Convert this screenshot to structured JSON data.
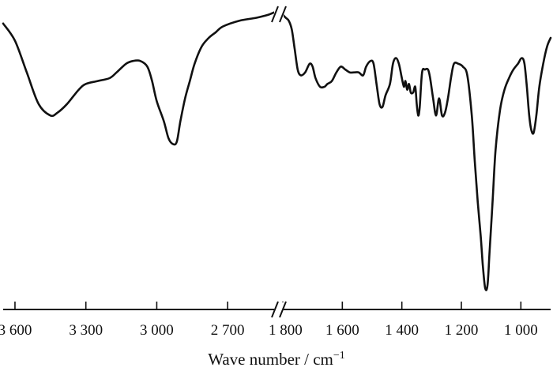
{
  "chart_data": {
    "type": "line",
    "title": "",
    "xlabel": "Wave number / cm",
    "xlabel_superscript": "−1",
    "ylabel": "",
    "x_reversed": true,
    "axis_break": "1 800",
    "grid": false,
    "legend": "none",
    "line_color": "#111111",
    "segments": [
      {
        "xlim": [
          3650,
          2500
        ],
        "ticks": [
          {
            "value": 3600,
            "label": "3 600"
          },
          {
            "value": 3300,
            "label": "3 300"
          },
          {
            "value": 3000,
            "label": "3 000"
          },
          {
            "value": 2700,
            "label": "2 700"
          }
        ],
        "points": [
          [
            3650,
            0.94
          ],
          [
            3600,
            0.88
          ],
          [
            3550,
            0.77
          ],
          [
            3500,
            0.66
          ],
          [
            3450,
            0.62
          ],
          [
            3420,
            0.63
          ],
          [
            3380,
            0.66
          ],
          [
            3330,
            0.71
          ],
          [
            3300,
            0.73
          ],
          [
            3250,
            0.74
          ],
          [
            3200,
            0.75
          ],
          [
            3170,
            0.77
          ],
          [
            3130,
            0.8
          ],
          [
            3100,
            0.81
          ],
          [
            3070,
            0.81
          ],
          [
            3040,
            0.79
          ],
          [
            3020,
            0.74
          ],
          [
            3000,
            0.67
          ],
          [
            2970,
            0.6
          ],
          [
            2950,
            0.54
          ],
          [
            2930,
            0.52
          ],
          [
            2915,
            0.53
          ],
          [
            2900,
            0.6
          ],
          [
            2880,
            0.68
          ],
          [
            2860,
            0.74
          ],
          [
            2840,
            0.8
          ],
          [
            2810,
            0.86
          ],
          [
            2780,
            0.89
          ],
          [
            2750,
            0.91
          ],
          [
            2720,
            0.93
          ],
          [
            2650,
            0.95
          ],
          [
            2580,
            0.96
          ],
          [
            2530,
            0.97
          ],
          [
            2500,
            0.98
          ]
        ]
      },
      {
        "xlim": [
          1800,
          900
        ],
        "ticks": [
          {
            "value": 1800,
            "label": "1 800"
          },
          {
            "value": 1600,
            "label": "1 600"
          },
          {
            "value": 1400,
            "label": "1 400"
          },
          {
            "value": 1200,
            "label": "1 200"
          },
          {
            "value": 1000,
            "label": "1 000"
          }
        ],
        "points": [
          [
            1800,
            0.97
          ],
          [
            1790,
            0.96
          ],
          [
            1780,
            0.95
          ],
          [
            1770,
            0.92
          ],
          [
            1760,
            0.85
          ],
          [
            1750,
            0.78
          ],
          [
            1740,
            0.76
          ],
          [
            1725,
            0.77
          ],
          [
            1710,
            0.8
          ],
          [
            1700,
            0.79
          ],
          [
            1690,
            0.75
          ],
          [
            1675,
            0.72
          ],
          [
            1660,
            0.72
          ],
          [
            1650,
            0.73
          ],
          [
            1635,
            0.74
          ],
          [
            1620,
            0.77
          ],
          [
            1605,
            0.79
          ],
          [
            1590,
            0.78
          ],
          [
            1575,
            0.77
          ],
          [
            1560,
            0.77
          ],
          [
            1545,
            0.77
          ],
          [
            1530,
            0.76
          ],
          [
            1520,
            0.79
          ],
          [
            1505,
            0.81
          ],
          [
            1495,
            0.8
          ],
          [
            1485,
            0.73
          ],
          [
            1475,
            0.66
          ],
          [
            1465,
            0.65
          ],
          [
            1455,
            0.69
          ],
          [
            1440,
            0.73
          ],
          [
            1430,
            0.8
          ],
          [
            1420,
            0.82
          ],
          [
            1410,
            0.8
          ],
          [
            1400,
            0.75
          ],
          [
            1393,
            0.72
          ],
          [
            1388,
            0.74
          ],
          [
            1382,
            0.71
          ],
          [
            1376,
            0.73
          ],
          [
            1370,
            0.7
          ],
          [
            1362,
            0.7
          ],
          [
            1355,
            0.72
          ],
          [
            1350,
            0.66
          ],
          [
            1345,
            0.62
          ],
          [
            1340,
            0.65
          ],
          [
            1332,
            0.77
          ],
          [
            1322,
            0.78
          ],
          [
            1312,
            0.78
          ],
          [
            1305,
            0.75
          ],
          [
            1295,
            0.68
          ],
          [
            1285,
            0.62
          ],
          [
            1275,
            0.68
          ],
          [
            1265,
            0.62
          ],
          [
            1255,
            0.63
          ],
          [
            1245,
            0.68
          ],
          [
            1235,
            0.75
          ],
          [
            1225,
            0.8
          ],
          [
            1210,
            0.8
          ],
          [
            1195,
            0.79
          ],
          [
            1180,
            0.76
          ],
          [
            1165,
            0.62
          ],
          [
            1155,
            0.46
          ],
          [
            1145,
            0.32
          ],
          [
            1135,
            0.2
          ],
          [
            1128,
            0.1
          ],
          [
            1120,
            0.02
          ],
          [
            1112,
            0.03
          ],
          [
            1105,
            0.15
          ],
          [
            1095,
            0.32
          ],
          [
            1085,
            0.5
          ],
          [
            1070,
            0.64
          ],
          [
            1055,
            0.71
          ],
          [
            1040,
            0.75
          ],
          [
            1025,
            0.78
          ],
          [
            1010,
            0.8
          ],
          [
            997,
            0.82
          ],
          [
            988,
            0.8
          ],
          [
            980,
            0.72
          ],
          [
            972,
            0.62
          ],
          [
            965,
            0.57
          ],
          [
            957,
            0.56
          ],
          [
            948,
            0.62
          ],
          [
            938,
            0.72
          ],
          [
            925,
            0.8
          ],
          [
            912,
            0.86
          ],
          [
            900,
            0.89
          ]
        ]
      }
    ]
  }
}
